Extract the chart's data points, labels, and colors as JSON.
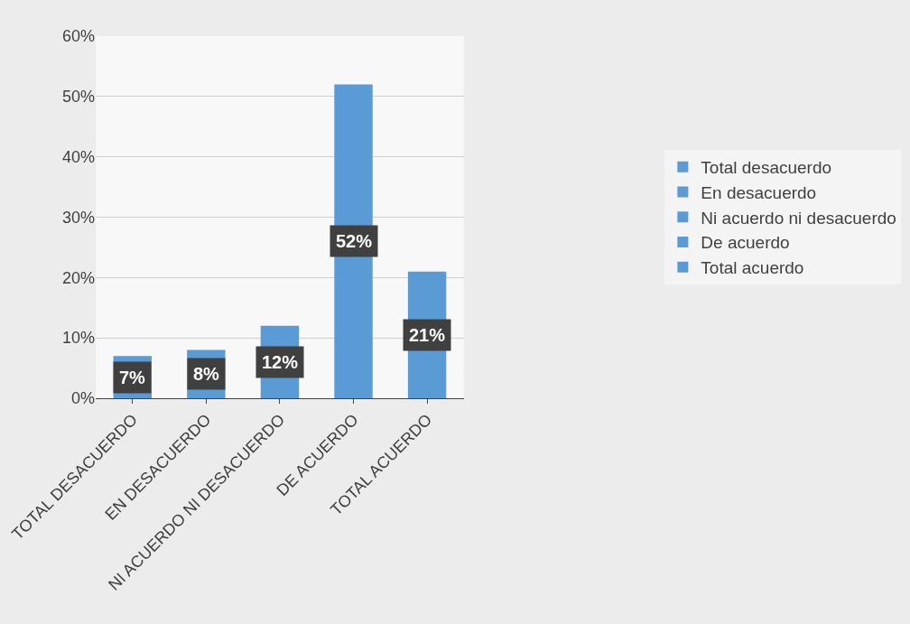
{
  "chart_data": {
    "type": "bar",
    "stacked": true,
    "categories": [
      "TOTAL DESACUERDO",
      "EN DESACUERDO",
      "NI ACUERDO NI DESACUERDO",
      "DE ACUERDO",
      "TOTAL ACUERDO"
    ],
    "series": [
      {
        "name": "Total desacuerdo",
        "color": "#5b9bd5",
        "values": [
          7,
          null,
          null,
          null,
          null
        ],
        "value_labels": [
          "7%",
          null,
          null,
          null,
          null
        ]
      },
      {
        "name": "En desacuerdo",
        "color": "#5b9bd5",
        "values": [
          null,
          8,
          null,
          null,
          null
        ],
        "value_labels": [
          null,
          "8%",
          null,
          null,
          null
        ]
      },
      {
        "name": "Ni acuerdo ni desacuerdo",
        "color": "#5b9bd5",
        "values": [
          null,
          null,
          12,
          null,
          null
        ],
        "value_labels": [
          null,
          null,
          "12%",
          null,
          null
        ]
      },
      {
        "name": "De acuerdo",
        "color": "#5b9bd5",
        "values": [
          null,
          null,
          null,
          52,
          null
        ],
        "value_labels": [
          null,
          null,
          null,
          "52%",
          null
        ]
      },
      {
        "name": "Total acuerdo",
        "color": "#5b9bd5",
        "values": [
          null,
          null,
          null,
          null,
          21
        ],
        "value_labels": [
          null,
          null,
          null,
          null,
          "21%"
        ]
      }
    ],
    "ylim": [
      0,
      60
    ],
    "yticks": [
      {
        "value": 0,
        "label": "0%"
      },
      {
        "value": 10,
        "label": "10%"
      },
      {
        "value": 20,
        "label": "20%"
      },
      {
        "value": 30,
        "label": "30%"
      },
      {
        "value": 40,
        "label": "40%"
      },
      {
        "value": 50,
        "label": "50%"
      },
      {
        "value": 60,
        "label": "60%"
      }
    ],
    "grid": "y",
    "legend": "right"
  }
}
